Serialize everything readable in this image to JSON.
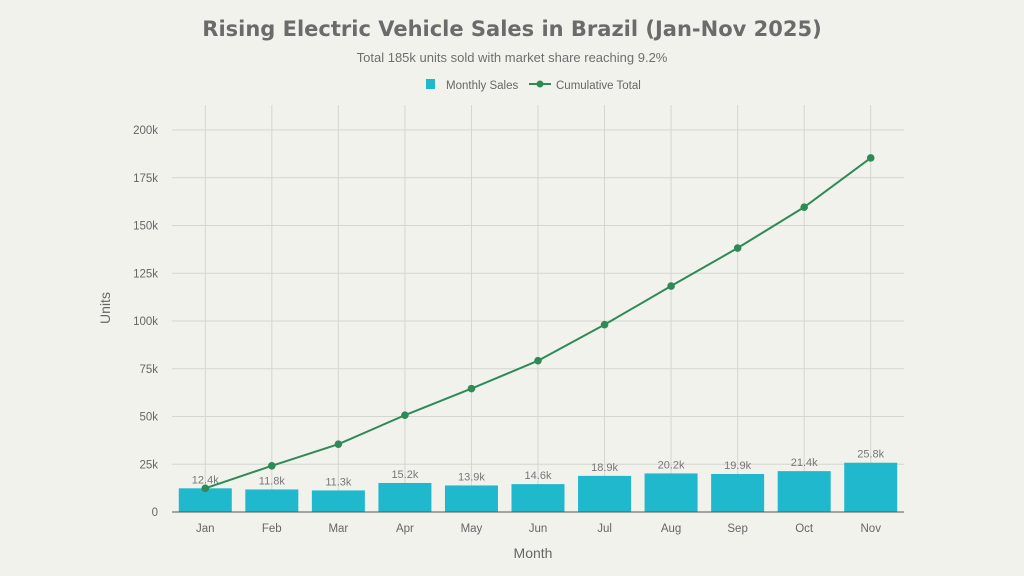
{
  "chart_data": {
    "type": "bar",
    "title": "Rising Electric Vehicle Sales in Brazil (Jan-Nov 2025)",
    "subtitle": "Total 185k units sold with market share reaching 9.2%",
    "xlabel": "Month",
    "ylabel": "Units",
    "ylim": [
      0,
      200000
    ],
    "yticks": [
      0,
      25000,
      50000,
      75000,
      100000,
      125000,
      150000,
      175000,
      200000
    ],
    "ytick_labels": [
      "0",
      "25k",
      "50k",
      "75k",
      "100k",
      "125k",
      "150k",
      "175k",
      "200k"
    ],
    "grid": true,
    "legend_position": "top-center",
    "categories": [
      "Jan",
      "Feb",
      "Mar",
      "Apr",
      "May",
      "Jun",
      "Jul",
      "Aug",
      "Sep",
      "Oct",
      "Nov"
    ],
    "series": [
      {
        "name": "Monthly Sales",
        "type": "bar",
        "color": "#1fb8cd",
        "values": [
          12400,
          11800,
          11300,
          15200,
          13900,
          14600,
          18900,
          20200,
          19900,
          21400,
          25800
        ],
        "labels": [
          "12.4k",
          "11.8k",
          "11.3k",
          "15.2k",
          "13.9k",
          "14.6k",
          "18.9k",
          "20.2k",
          "19.9k",
          "21.4k",
          "25.8k"
        ]
      },
      {
        "name": "Cumulative Total",
        "type": "line",
        "color": "#2e8b57",
        "values": [
          12400,
          24200,
          35500,
          50700,
          64600,
          79200,
          98100,
          118300,
          138200,
          159600,
          185400
        ]
      }
    ]
  }
}
